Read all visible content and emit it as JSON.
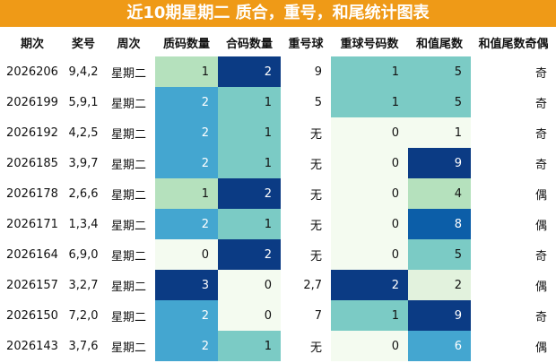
{
  "title": "近10期星期二 质合，重号，和尾统计图表",
  "columns": [
    "期次",
    "奖号",
    "周次",
    "质码数量",
    "合码数量",
    "重号球",
    "重球号码数",
    "和值尾数",
    "和值尾数奇偶"
  ],
  "rows": [
    {
      "period": "2026206",
      "numbers": "9,4,2",
      "weekday": "星期二",
      "prime_count": "1",
      "composite_count": "2",
      "repeat_balls": "9",
      "repeat_count": "1",
      "sum_tail": "5",
      "parity": "奇"
    },
    {
      "period": "2026199",
      "numbers": "5,9,1",
      "weekday": "星期二",
      "prime_count": "2",
      "composite_count": "1",
      "repeat_balls": "5",
      "repeat_count": "1",
      "sum_tail": "5",
      "parity": "奇"
    },
    {
      "period": "2026192",
      "numbers": "4,2,5",
      "weekday": "星期二",
      "prime_count": "2",
      "composite_count": "1",
      "repeat_balls": "无",
      "repeat_count": "0",
      "sum_tail": "1",
      "parity": "奇"
    },
    {
      "period": "2026185",
      "numbers": "3,9,7",
      "weekday": "星期二",
      "prime_count": "2",
      "composite_count": "1",
      "repeat_balls": "无",
      "repeat_count": "0",
      "sum_tail": "9",
      "parity": "奇"
    },
    {
      "period": "2026178",
      "numbers": "2,6,6",
      "weekday": "星期二",
      "prime_count": "1",
      "composite_count": "2",
      "repeat_balls": "无",
      "repeat_count": "0",
      "sum_tail": "4",
      "parity": "偶"
    },
    {
      "period": "2026171",
      "numbers": "1,3,4",
      "weekday": "星期二",
      "prime_count": "2",
      "composite_count": "1",
      "repeat_balls": "无",
      "repeat_count": "0",
      "sum_tail": "8",
      "parity": "偶"
    },
    {
      "period": "2026164",
      "numbers": "6,9,0",
      "weekday": "星期二",
      "prime_count": "0",
      "composite_count": "2",
      "repeat_balls": "无",
      "repeat_count": "0",
      "sum_tail": "5",
      "parity": "奇"
    },
    {
      "period": "2026157",
      "numbers": "3,2,7",
      "weekday": "星期二",
      "prime_count": "3",
      "composite_count": "0",
      "repeat_balls": "2,7",
      "repeat_count": "2",
      "sum_tail": "2",
      "parity": "偶"
    },
    {
      "period": "2026150",
      "numbers": "7,2,0",
      "weekday": "星期二",
      "prime_count": "2",
      "composite_count": "0",
      "repeat_balls": "7",
      "repeat_count": "1",
      "sum_tail": "9",
      "parity": "奇"
    },
    {
      "period": "2026143",
      "numbers": "3,7,6",
      "weekday": "星期二",
      "prime_count": "2",
      "composite_count": "1",
      "repeat_balls": "无",
      "repeat_count": "0",
      "sum_tail": "6",
      "parity": "偶"
    }
  ],
  "colors": {
    "header_bar": "#ef9a17",
    "scale_0": "#f4fbf0",
    "scale_1": "#b5e1bd",
    "scale_2": "#7bcbc5",
    "scale_3": "#44a6d0",
    "scale_4": "#0c5ea8",
    "scale_5": "#0b3b84"
  },
  "cell_shades": {
    "prime_count": [
      "b5e1bd",
      "44a6d0",
      "44a6d0",
      "44a6d0",
      "b5e1bd",
      "44a6d0",
      "f4fbf0",
      "0b3b84",
      "44a6d0",
      "44a6d0"
    ],
    "composite_count": [
      "0b3b84",
      "7bcbc5",
      "7bcbc5",
      "7bcbc5",
      "0b3b84",
      "7bcbc5",
      "0b3b84",
      "f4fbf0",
      "f4fbf0",
      "7bcbc5"
    ],
    "repeat_count": [
      "7bcbc5",
      "7bcbc5",
      "f4fbf0",
      "f4fbf0",
      "f4fbf0",
      "f4fbf0",
      "f4fbf0",
      "0b3b84",
      "7bcbc5",
      "f4fbf0"
    ],
    "sum_tail": [
      "7bcbc5",
      "7bcbc5",
      "f4fbf0",
      "0b3b84",
      "b5e1bd",
      "0c5ea8",
      "7bcbc5",
      "e2f2dd",
      "0b3b84",
      "44a6d0"
    ]
  }
}
